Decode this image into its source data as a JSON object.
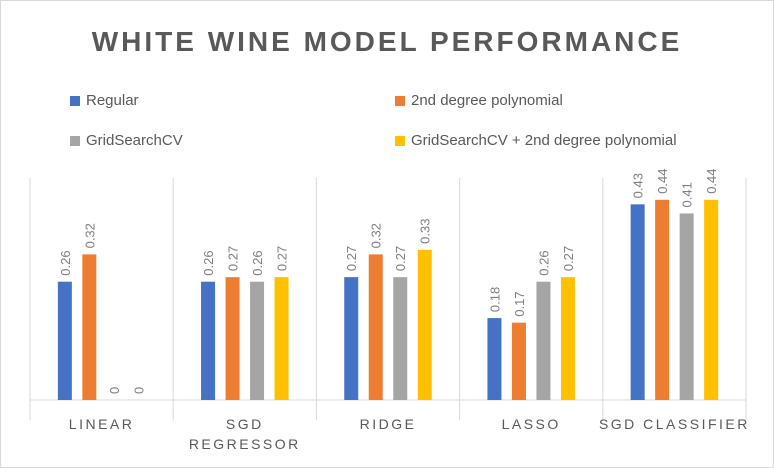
{
  "chart_data": {
    "type": "bar",
    "title": "WHITE WINE MODEL PERFORMANCE",
    "categories": [
      "LINEAR",
      "SGD\nREGRESSOR",
      "RIDGE",
      "LASSO",
      "SGD CLASSIFIER"
    ],
    "series": [
      {
        "name": "Regular",
        "color": "#4472C4",
        "values": [
          0.26,
          0.26,
          0.27,
          0.18,
          0.43
        ]
      },
      {
        "name": "2nd degree polynomial",
        "color": "#ED7D31",
        "values": [
          0.32,
          0.27,
          0.32,
          0.17,
          0.44
        ]
      },
      {
        "name": "GridSearchCV",
        "color": "#A5A5A5",
        "values": [
          0,
          0.26,
          0.27,
          0.26,
          0.41
        ]
      },
      {
        "name": "GridSearchCV + 2nd degree polynomial",
        "color": "#FFC000",
        "values": [
          0,
          0.27,
          0.33,
          0.27,
          0.44
        ]
      }
    ],
    "xlabel": "",
    "ylabel": "",
    "ylim": [
      0,
      0.5
    ],
    "grid": false,
    "data_labels": true,
    "legend_position": "top"
  }
}
